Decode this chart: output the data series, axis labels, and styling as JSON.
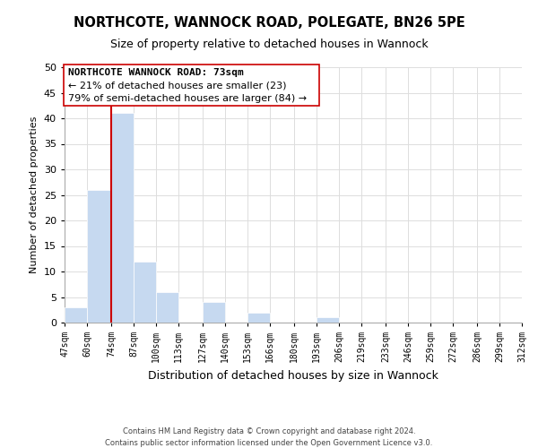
{
  "title": "NORTHCOTE, WANNOCK ROAD, POLEGATE, BN26 5PE",
  "subtitle": "Size of property relative to detached houses in Wannock",
  "xlabel": "Distribution of detached houses by size in Wannock",
  "ylabel": "Number of detached properties",
  "bar_color": "#c6d9f0",
  "bar_edge_color": "white",
  "annotation_line_color": "#cc0000",
  "bin_edges": [
    47,
    60,
    74,
    87,
    100,
    113,
    127,
    140,
    153,
    166,
    180,
    193,
    206,
    219,
    233,
    246,
    259,
    272,
    286,
    299,
    312
  ],
  "bar_heights": [
    3,
    26,
    41,
    12,
    6,
    0,
    4,
    0,
    2,
    0,
    0,
    1,
    0,
    0,
    0,
    0,
    0,
    0,
    0,
    0
  ],
  "x_tick_labels": [
    "47sqm",
    "60sqm",
    "74sqm",
    "87sqm",
    "100sqm",
    "113sqm",
    "127sqm",
    "140sqm",
    "153sqm",
    "166sqm",
    "180sqm",
    "193sqm",
    "206sqm",
    "219sqm",
    "233sqm",
    "246sqm",
    "259sqm",
    "272sqm",
    "286sqm",
    "299sqm",
    "312sqm"
  ],
  "ylim": [
    0,
    50
  ],
  "yticks": [
    0,
    5,
    10,
    15,
    20,
    25,
    30,
    35,
    40,
    45,
    50
  ],
  "vline_x": 74,
  "annotation_title": "NORTHCOTE WANNOCK ROAD: 73sqm",
  "annotation_line1": "← 21% of detached houses are smaller (23)",
  "annotation_line2": "79% of semi-detached houses are larger (84) →",
  "footer_line1": "Contains HM Land Registry data © Crown copyright and database right 2024.",
  "footer_line2": "Contains public sector information licensed under the Open Government Licence v3.0.",
  "grid_color": "#dddddd",
  "background_color": "#ffffff"
}
